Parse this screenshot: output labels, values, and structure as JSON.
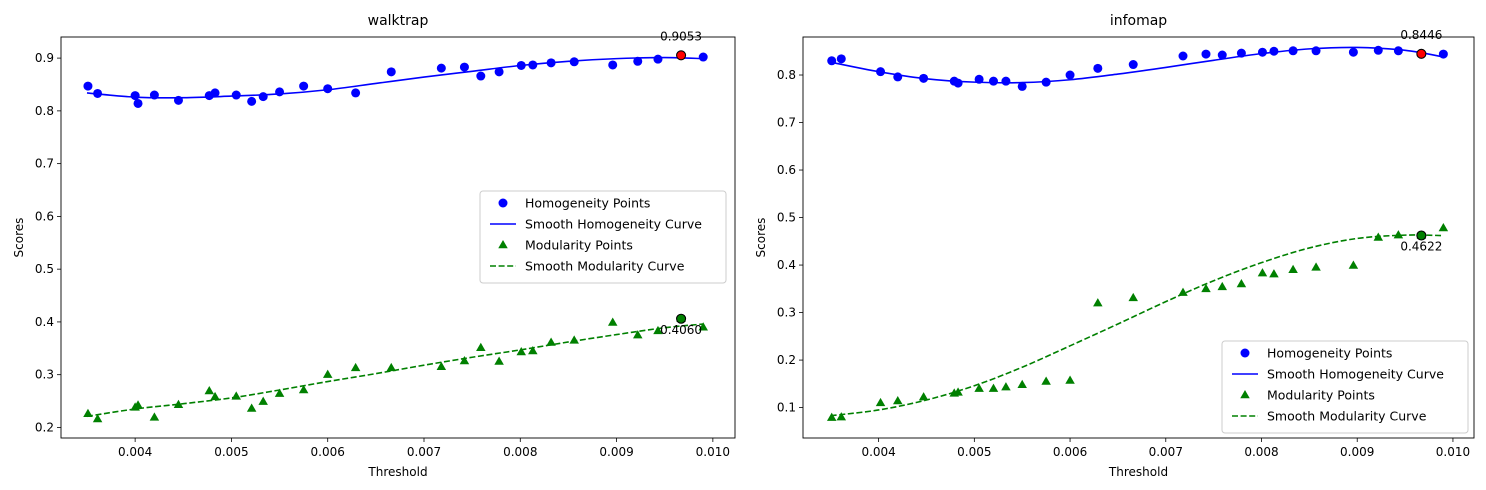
{
  "chart_data": [
    {
      "type": "scatter",
      "title": "walktrap",
      "xlabel": "Threshold",
      "ylabel": "Scores",
      "xlim": [
        0.00323,
        0.01023
      ],
      "ylim": [
        0.18,
        0.94
      ],
      "xticks": [
        0.004,
        0.005,
        0.006,
        0.007,
        0.008,
        0.009,
        0.01
      ],
      "xtick_labels": [
        "0.004",
        "0.005",
        "0.006",
        "0.007",
        "0.008",
        "0.009",
        "0.010"
      ],
      "yticks": [
        0.2,
        0.3,
        0.4,
        0.5,
        0.6,
        0.7,
        0.8,
        0.9
      ],
      "ytick_labels": [
        "0.2",
        "0.3",
        "0.4",
        "0.5",
        "0.6",
        "0.7",
        "0.8",
        "0.9"
      ],
      "grid": false,
      "legend_position": "center-right",
      "legend": [
        "Homogeneity Points",
        "Smooth Homogeneity Curve",
        "Modularity Points",
        "Smooth Modularity Curve"
      ],
      "series": [
        {
          "name": "Homogeneity Points",
          "kind": "points",
          "marker": "circle",
          "color": "#0000ff",
          "x": [
            0.00351,
            0.00361,
            0.004,
            0.00403,
            0.0042,
            0.00445,
            0.00477,
            0.00483,
            0.00505,
            0.00521,
            0.00533,
            0.0055,
            0.00575,
            0.006,
            0.00629,
            0.00666,
            0.00718,
            0.00742,
            0.00759,
            0.00778,
            0.00801,
            0.00813,
            0.00832,
            0.00856,
            0.00896,
            0.00922,
            0.00943,
            0.00967,
            0.0099
          ],
          "y": [
            0.847,
            0.833,
            0.829,
            0.814,
            0.83,
            0.82,
            0.829,
            0.834,
            0.83,
            0.818,
            0.827,
            0.836,
            0.847,
            0.842,
            0.834,
            0.874,
            0.881,
            0.883,
            0.866,
            0.874,
            0.886,
            0.887,
            0.891,
            0.893,
            0.887,
            0.894,
            0.898,
            0.9053,
            0.902
          ]
        },
        {
          "name": "Smooth Homogeneity Curve",
          "kind": "line",
          "dash": "solid",
          "color": "#0000ff",
          "x": [
            0.0035,
            0.004,
            0.0045,
            0.005,
            0.0055,
            0.006,
            0.0065,
            0.007,
            0.0075,
            0.008,
            0.0085,
            0.009,
            0.0095,
            0.0099
          ],
          "y": [
            0.834,
            0.826,
            0.825,
            0.828,
            0.832,
            0.84,
            0.852,
            0.864,
            0.875,
            0.886,
            0.894,
            0.899,
            0.901,
            0.899
          ]
        },
        {
          "name": "Modularity Points",
          "kind": "points",
          "marker": "triangle",
          "color": "#008000",
          "x": [
            0.00351,
            0.00361,
            0.004,
            0.00403,
            0.0042,
            0.00445,
            0.00477,
            0.00483,
            0.00505,
            0.00521,
            0.00533,
            0.0055,
            0.00575,
            0.006,
            0.00629,
            0.00666,
            0.00718,
            0.00742,
            0.00759,
            0.00778,
            0.00801,
            0.00813,
            0.00832,
            0.00856,
            0.00896,
            0.00922,
            0.00943,
            0.00967,
            0.0099
          ],
          "y": [
            0.226,
            0.216,
            0.238,
            0.242,
            0.219,
            0.243,
            0.269,
            0.258,
            0.259,
            0.236,
            0.249,
            0.264,
            0.271,
            0.3,
            0.313,
            0.313,
            0.315,
            0.326,
            0.351,
            0.325,
            0.343,
            0.345,
            0.361,
            0.365,
            0.399,
            0.375,
            0.383,
            0.406,
            0.39
          ]
        },
        {
          "name": "Smooth Modularity Curve",
          "kind": "line",
          "dash": "dashed",
          "color": "#008000",
          "x": [
            0.0035,
            0.004,
            0.0045,
            0.005,
            0.0055,
            0.006,
            0.0065,
            0.007,
            0.0075,
            0.008,
            0.0085,
            0.009,
            0.0095,
            0.0099
          ],
          "y": [
            0.221,
            0.235,
            0.245,
            0.256,
            0.271,
            0.287,
            0.302,
            0.318,
            0.333,
            0.347,
            0.362,
            0.376,
            0.389,
            0.396
          ]
        }
      ],
      "highlights": [
        {
          "x": 0.00967,
          "y": 0.9053,
          "label": "0.9053",
          "color": "#ff0000",
          "label_side": "above"
        },
        {
          "x": 0.00967,
          "y": 0.406,
          "label": "0.4060",
          "color": "#008000",
          "label_side": "below"
        }
      ]
    },
    {
      "type": "scatter",
      "title": "infomap",
      "xlabel": "Threshold",
      "ylabel": "Scores",
      "xlim": [
        0.00321,
        0.01022
      ],
      "ylim": [
        0.036,
        0.88
      ],
      "xticks": [
        0.004,
        0.005,
        0.006,
        0.007,
        0.008,
        0.009,
        0.01
      ],
      "xtick_labels": [
        "0.004",
        "0.005",
        "0.006",
        "0.007",
        "0.008",
        "0.009",
        "0.010"
      ],
      "yticks": [
        0.1,
        0.2,
        0.3,
        0.4,
        0.5,
        0.6,
        0.7,
        0.8
      ],
      "ytick_labels": [
        "0.1",
        "0.2",
        "0.3",
        "0.4",
        "0.5",
        "0.6",
        "0.7",
        "0.8"
      ],
      "grid": false,
      "legend_position": "lower-right",
      "legend": [
        "Homogeneity Points",
        "Smooth Homogeneity Curve",
        "Modularity Points",
        "Smooth Modularity Curve"
      ],
      "series": [
        {
          "name": "Homogeneity Points",
          "kind": "points",
          "marker": "circle",
          "color": "#0000ff",
          "x": [
            0.00351,
            0.00361,
            0.00402,
            0.0042,
            0.00447,
            0.00479,
            0.00483,
            0.00505,
            0.0052,
            0.00533,
            0.0055,
            0.00575,
            0.006,
            0.00629,
            0.00666,
            0.00718,
            0.00742,
            0.00759,
            0.00779,
            0.00801,
            0.00813,
            0.00833,
            0.00857,
            0.00896,
            0.00922,
            0.00943,
            0.00967,
            0.0099
          ],
          "y": [
            0.83,
            0.834,
            0.807,
            0.796,
            0.793,
            0.787,
            0.783,
            0.791,
            0.787,
            0.787,
            0.776,
            0.785,
            0.8,
            0.814,
            0.822,
            0.84,
            0.844,
            0.842,
            0.846,
            0.848,
            0.85,
            0.851,
            0.851,
            0.848,
            0.852,
            0.851,
            0.8446,
            0.844
          ]
        },
        {
          "name": "Smooth Homogeneity Curve",
          "kind": "line",
          "dash": "solid",
          "color": "#0000ff",
          "x": [
            0.0035,
            0.004,
            0.0045,
            0.005,
            0.0055,
            0.006,
            0.0065,
            0.007,
            0.0075,
            0.008,
            0.0085,
            0.009,
            0.0095,
            0.0099
          ],
          "y": [
            0.827,
            0.807,
            0.792,
            0.785,
            0.784,
            0.79,
            0.802,
            0.816,
            0.831,
            0.845,
            0.855,
            0.858,
            0.852,
            0.838
          ]
        },
        {
          "name": "Modularity Points",
          "kind": "points",
          "marker": "triangle",
          "color": "#008000",
          "x": [
            0.00351,
            0.00361,
            0.00402,
            0.0042,
            0.00447,
            0.00479,
            0.00483,
            0.00505,
            0.0052,
            0.00533,
            0.0055,
            0.00575,
            0.006,
            0.00629,
            0.00666,
            0.00718,
            0.00742,
            0.00759,
            0.00779,
            0.00801,
            0.00813,
            0.00833,
            0.00857,
            0.00896,
            0.00922,
            0.00943,
            0.00967,
            0.0099
          ],
          "y": [
            0.079,
            0.08,
            0.11,
            0.114,
            0.122,
            0.13,
            0.132,
            0.14,
            0.14,
            0.143,
            0.148,
            0.155,
            0.157,
            0.32,
            0.331,
            0.342,
            0.35,
            0.354,
            0.36,
            0.383,
            0.381,
            0.39,
            0.395,
            0.399,
            0.458,
            0.463,
            0.4622,
            0.478
          ]
        },
        {
          "name": "Smooth Modularity Curve",
          "kind": "line",
          "dash": "dashed",
          "color": "#008000",
          "x": [
            0.0035,
            0.004,
            0.0045,
            0.005,
            0.0055,
            0.006,
            0.0065,
            0.007,
            0.0075,
            0.008,
            0.0085,
            0.009,
            0.0095,
            0.0099
          ],
          "y": [
            0.083,
            0.095,
            0.116,
            0.146,
            0.185,
            0.23,
            0.276,
            0.323,
            0.367,
            0.405,
            0.436,
            0.456,
            0.463,
            0.462
          ]
        }
      ],
      "highlights": [
        {
          "x": 0.00967,
          "y": 0.8446,
          "label": "0.8446",
          "color": "#ff0000",
          "label_side": "above"
        },
        {
          "x": 0.00967,
          "y": 0.4622,
          "label": "0.4622",
          "color": "#008000",
          "label_side": "below"
        }
      ]
    }
  ]
}
